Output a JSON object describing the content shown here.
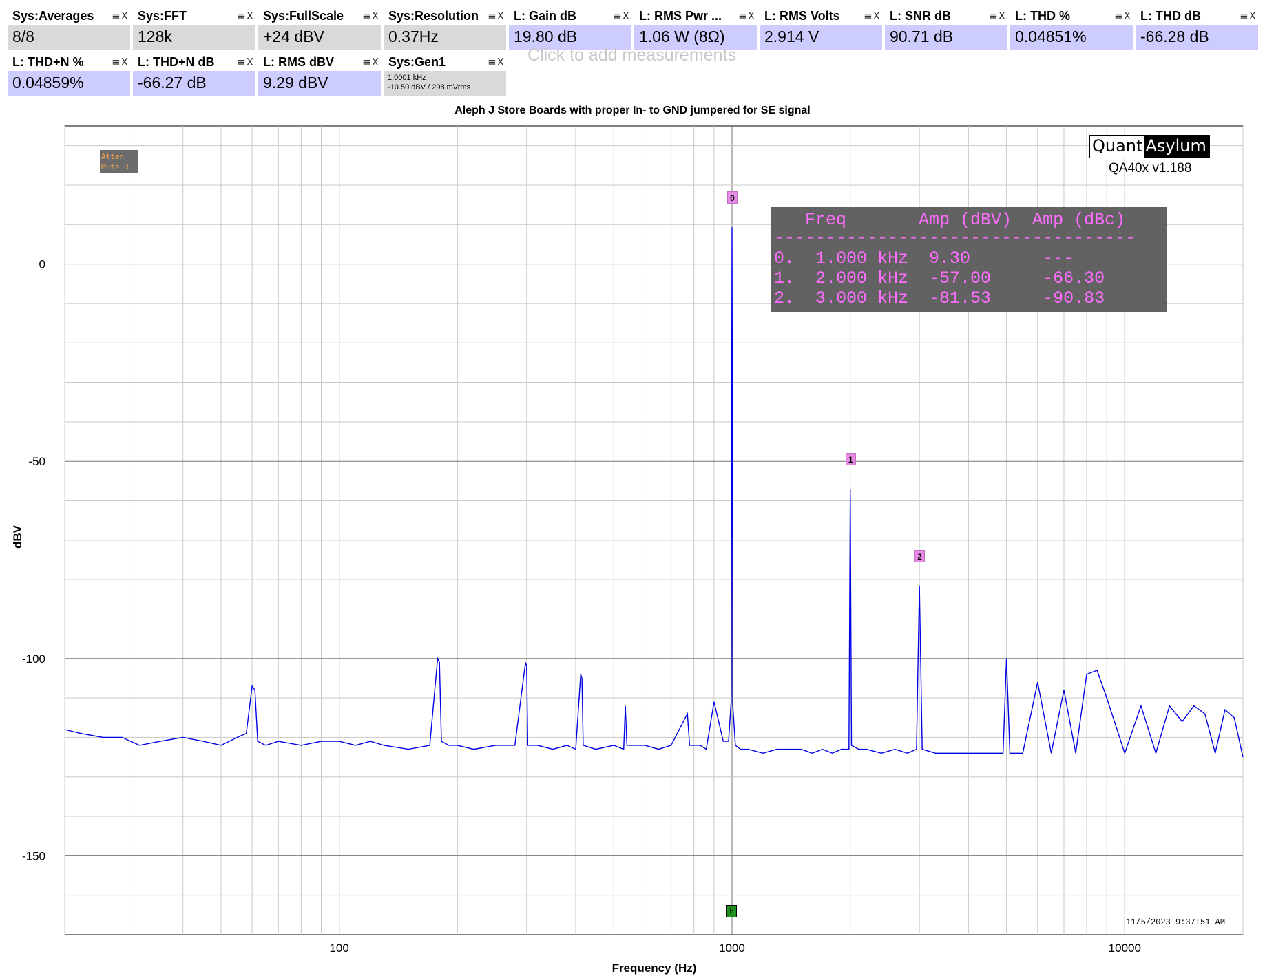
{
  "tiles_row1": [
    {
      "title": "Sys:Averages",
      "value": "8/8",
      "kind": "sys"
    },
    {
      "title": "Sys:FFT",
      "value": "128k",
      "kind": "sys"
    },
    {
      "title": "Sys:FullScale",
      "value": "+24 dBV",
      "kind": "sys"
    },
    {
      "title": "Sys:Resolution",
      "value": "0.37Hz",
      "kind": "sys"
    },
    {
      "title": "L: Gain dB",
      "value": "19.80 dB",
      "kind": "meas"
    },
    {
      "title": "L: RMS Pwr ...",
      "value": "1.06 W (8Ω)",
      "kind": "meas"
    },
    {
      "title": "L: RMS Volts",
      "value": "2.914 V",
      "kind": "meas"
    },
    {
      "title": "L: SNR dB",
      "value": "90.71 dB",
      "kind": "meas"
    },
    {
      "title": "L: THD %",
      "value": "0.04851%",
      "kind": "meas"
    },
    {
      "title": "L: THD dB",
      "value": "-66.28 dB",
      "kind": "meas"
    }
  ],
  "tiles_row2": [
    {
      "title": "L: THD+N %",
      "value": "0.04859%",
      "kind": "meas"
    },
    {
      "title": "L: THD+N dB",
      "value": "-66.27 dB",
      "kind": "meas"
    },
    {
      "title": "L: RMS dBV",
      "value": "9.29 dBV",
      "kind": "meas"
    }
  ],
  "gen_tile": {
    "title": "Sys:Gen1",
    "line1": "1.0001 kHz",
    "line2": "-10.50 dBV  / 298 mVrms"
  },
  "tile_controls": "≡X",
  "add_measurement_hint": "Click to add measurements",
  "logo": {
    "part1": "Quant",
    "part2": "Asylum",
    "version": "QA40x v1.188"
  },
  "flags": {
    "line1": "Atten",
    "line2": "Mute R"
  },
  "timestamp": "11/5/2023 9:37:51 AM",
  "harmonic_table": {
    "header": "   Freq       Amp (dBV)  Amp (dBc)",
    "divider": "-----------------------------------",
    "rows": [
      "0.  1.000 kHz  9.30       ---",
      "1.  2.000 kHz  -57.00     -66.30",
      "2.  3.000 kHz  -81.53     -90.83"
    ]
  },
  "colors": {
    "trace": "#0000e6",
    "meas_bg": "#ccccff",
    "sys_bg": "#d9d9d9",
    "marker": "#e68ae6",
    "table_text": "#ff66ff"
  },
  "chart_data": {
    "type": "line",
    "title": "Aleph J  Store Boards with proper In- to GND jumpered for SE signal",
    "xlabel": "Frequency (Hz)",
    "ylabel": "dBV",
    "x_scale": "log",
    "xlim": [
      20,
      20000
    ],
    "ylim": [
      -170,
      35
    ],
    "x_ticks": [
      100,
      1000,
      10000
    ],
    "x_tick_labels": [
      "100",
      "1000",
      "10000"
    ],
    "y_ticks": [
      0,
      -50,
      -100,
      -150
    ],
    "y_tick_labels": [
      "0",
      "-50",
      "-100",
      "-150"
    ],
    "grid": true,
    "series": [
      {
        "x": [
          20,
          22,
          25,
          28,
          31,
          35,
          40,
          45,
          50,
          55,
          58,
          60,
          61,
          62,
          65,
          70,
          80,
          90,
          100,
          110,
          120,
          130,
          150,
          170,
          178,
          180,
          182,
          190,
          200,
          220,
          250,
          280,
          298,
          300,
          302,
          320,
          350,
          380,
          400,
          412,
          415,
          418,
          450,
          500,
          530,
          535,
          540,
          600,
          650,
          700,
          770,
          780,
          800,
          830,
          860,
          900,
          950,
          980,
          995,
          1000,
          1005,
          1020,
          1050,
          1100,
          1200,
          1300,
          1400,
          1500,
          1600,
          1700,
          1800,
          1900,
          1985,
          2000,
          2015,
          2100,
          2200,
          2400,
          2600,
          2800,
          2950,
          3000,
          3050,
          3300,
          3600,
          4000,
          4500,
          4900,
          5000,
          5100,
          5500,
          6000,
          6500,
          7000,
          7500,
          8000,
          8500,
          9000,
          10000,
          11000,
          12000,
          13000,
          14000,
          15000,
          16000,
          17000,
          18000,
          19000,
          20000
        ],
        "y": [
          -118,
          -119,
          -120,
          -120,
          -122,
          -121,
          -120,
          -121,
          -122,
          -120,
          -119,
          -107,
          -108,
          -121,
          -122,
          -121,
          -122,
          -121,
          -121,
          -122,
          -121,
          -122,
          -123,
          -122,
          -100,
          -101,
          -121,
          -122,
          -122,
          -123,
          -122,
          -122,
          -101,
          -102,
          -122,
          -122,
          -123,
          -122,
          -123,
          -104,
          -105,
          -122,
          -123,
          -122,
          -123,
          -112,
          -122,
          -122,
          -123,
          -122,
          -114,
          -122,
          -122,
          -122,
          -123,
          -111,
          -121,
          -121,
          -111,
          9.3,
          -112,
          -122,
          -123,
          -123,
          -124,
          -123,
          -123,
          -123,
          -124,
          -123,
          -124,
          -123,
          -123,
          -57,
          -122,
          -123,
          -123,
          -124,
          -123,
          -124,
          -123,
          -81.5,
          -123,
          -124,
          -124,
          -124,
          -124,
          -124,
          -100,
          -124,
          -124,
          -106,
          -124,
          -108,
          -124,
          -104,
          -103,
          -110,
          -124,
          -112,
          -124,
          -112,
          -116,
          -112,
          -114,
          -124,
          -113,
          -115,
          -125
        ]
      }
    ],
    "markers": [
      {
        "label": "0",
        "x": 1000,
        "y": 9.3
      },
      {
        "label": "1",
        "x": 2000,
        "y": -57
      },
      {
        "label": "2",
        "x": 3000,
        "y": -81.53
      }
    ]
  }
}
